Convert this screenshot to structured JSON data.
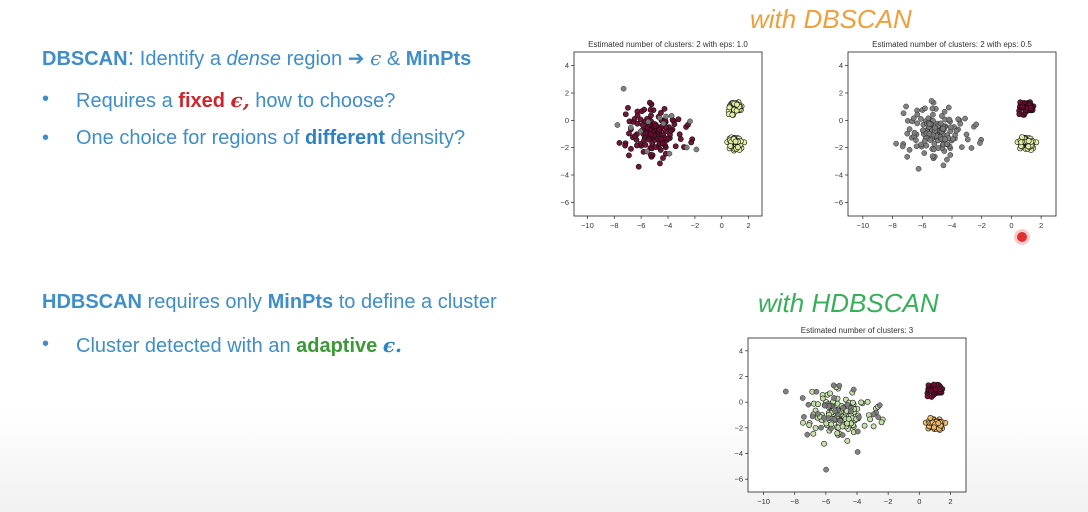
{
  "dbscan": {
    "heading_prefix": "DBSCAN",
    "heading_colon": ":",
    "heading_identify": " Identify a ",
    "heading_dense": "dense",
    "heading_region": " region ",
    "heading_arrow": "➔",
    "heading_eps": "ϵ",
    "heading_amp": " & ",
    "heading_minpts": "MinPts",
    "bullet1_pre": "Requires a ",
    "bullet1_fixed": "fixed",
    "bullet1_eps": "ϵ,",
    "bullet1_post": " how to choose?",
    "bullet2_pre": "One choice for regions of ",
    "bullet2_diff": "different",
    "bullet2_post": " density?"
  },
  "hdbscan": {
    "heading_name": "HDBSCAN",
    "heading_mid": " requires only ",
    "heading_minpts": "MinPts",
    "heading_post": " to define a cluster",
    "bullet1_pre": "Cluster detected with an ",
    "bullet1_adaptive": "adaptive",
    "bullet1_eps": "ϵ."
  },
  "bullet_symbol": "•",
  "titles": {
    "with_dbscan": "with DBSCAN",
    "with_hdbscan": "with HDBSCAN"
  },
  "colors": {
    "text_blue": "#3d8ec9",
    "fixed_red": "#d0232a",
    "adaptive_green": "#3a9a35",
    "dbscan_title_orange": "#f0a03a",
    "hdbscan_title_green": "#36b05a",
    "maroon_cluster": "#6b0a2e",
    "pale_yellow_cluster": "#e6f0a8",
    "noise_gray": "#7a7a7a",
    "light_green_cluster": "#c4dfa6",
    "orange_cluster": "#f2b969"
  },
  "chart_data": [
    {
      "type": "scatter",
      "title": "Estimated number of clusters: 2 with eps: 1.0",
      "xlim": [
        -11,
        3
      ],
      "ylim": [
        -7,
        5
      ],
      "xticks": [
        -10,
        -8,
        -6,
        -4,
        -2,
        0,
        2
      ],
      "yticks": [
        4,
        2,
        0,
        -2,
        -4,
        -6
      ],
      "series": [
        {
          "role": "cluster-large",
          "color": "#6b0a2e",
          "center": [
            -5.0,
            -0.8
          ],
          "spread": [
            1.8,
            1.7
          ],
          "count": 140
        },
        {
          "role": "cluster-top-right",
          "color": "#e6f0a8",
          "center": [
            1.0,
            1.0
          ],
          "spread": [
            0.45,
            0.35
          ],
          "count": 70
        },
        {
          "role": "cluster-bottom-right",
          "color": "#e6f0a8",
          "center": [
            1.0,
            -1.7
          ],
          "spread": [
            0.45,
            0.4
          ],
          "count": 70
        },
        {
          "role": "noise",
          "color": "#7a7a7a",
          "center": [
            -5.0,
            -1.0
          ],
          "spread": [
            3.6,
            2.8
          ],
          "count": 14
        }
      ]
    },
    {
      "type": "scatter",
      "title": "Estimated number of clusters: 2 with eps: 0.5",
      "xlim": [
        -11,
        3
      ],
      "ylim": [
        -7,
        5
      ],
      "xticks": [
        -10,
        -8,
        -6,
        -4,
        -2,
        0,
        2
      ],
      "yticks": [
        4,
        2,
        0,
        -2,
        -4,
        -6
      ],
      "series": [
        {
          "role": "noise",
          "color": "#7a7a7a",
          "center": [
            -5.0,
            -0.8
          ],
          "spread": [
            1.9,
            1.8
          ],
          "count": 150
        },
        {
          "role": "cluster-top-right",
          "color": "#6b0a2e",
          "center": [
            1.0,
            1.0
          ],
          "spread": [
            0.45,
            0.35
          ],
          "count": 70
        },
        {
          "role": "cluster-bottom-right",
          "color": "#e6f0a8",
          "center": [
            1.0,
            -1.7
          ],
          "spread": [
            0.45,
            0.4
          ],
          "count": 70
        }
      ]
    },
    {
      "type": "scatter",
      "title": "Estimated number of clusters: 3",
      "xlim": [
        -11,
        3
      ],
      "ylim": [
        -7,
        5
      ],
      "xticks": [
        -10,
        -8,
        -6,
        -4,
        -2,
        0,
        2
      ],
      "yticks": [
        4,
        2,
        0,
        -2,
        -4,
        -6
      ],
      "series": [
        {
          "role": "cluster-large",
          "color": "#c4dfa6",
          "center": [
            -5.0,
            -0.8
          ],
          "spread": [
            1.7,
            1.6
          ],
          "count": 120
        },
        {
          "role": "noise",
          "color": "#7a7a7a",
          "center": [
            -5.0,
            -1.0
          ],
          "spread": [
            3.0,
            2.5
          ],
          "count": 40
        },
        {
          "role": "cluster-top-right",
          "color": "#6b0a2e",
          "center": [
            1.0,
            1.0
          ],
          "spread": [
            0.45,
            0.35
          ],
          "count": 70
        },
        {
          "role": "cluster-bottom-right",
          "color": "#f2b969",
          "center": [
            1.0,
            -1.7
          ],
          "spread": [
            0.45,
            0.4
          ],
          "count": 70
        }
      ]
    }
  ]
}
